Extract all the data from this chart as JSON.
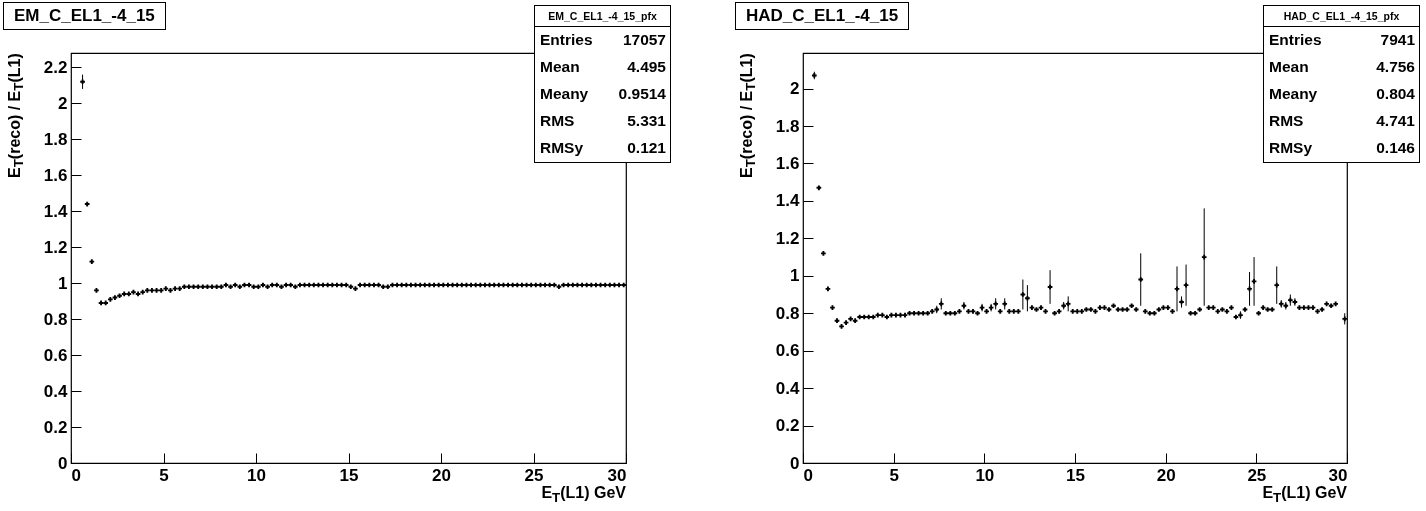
{
  "chart_data": [
    {
      "type": "scatter",
      "title": "EM_C_EL1_-4_15",
      "xlabel": "E$_{T}$(L1) GeV",
      "ylabel": "E$_{T}$(reco) / E$_{T}$(L1)",
      "marker": "cross",
      "color": "#000000",
      "annotations": [
        "EM_C_EL1_-4_15_pfx",
        "Entries 17057",
        "Mean 4.495",
        "Meany 0.9514",
        "RMS 5.331",
        "RMSy 0.121"
      ],
      "xlim": [
        0,
        30
      ],
      "ylim": [
        0,
        2.28
      ],
      "xticks": [
        0,
        5,
        10,
        15,
        20,
        25,
        30
      ],
      "yticks": [
        0,
        0.2,
        0.4,
        0.6,
        0.8,
        1,
        1.2,
        1.4,
        1.6,
        1.8,
        2,
        2.2
      ],
      "x": [
        0.625,
        0.875,
        1.125,
        1.375,
        1.625,
        1.875,
        2.125,
        2.375,
        2.625,
        2.875,
        3.125,
        3.375,
        3.625,
        3.875,
        4.125,
        4.375,
        4.625,
        4.875,
        5.125,
        5.375,
        5.625,
        5.875,
        6.125,
        6.375,
        6.625,
        6.875,
        7.125,
        7.375,
        7.625,
        7.875,
        8.125,
        8.375,
        8.625,
        8.875,
        9.125,
        9.375,
        9.625,
        9.875,
        10.125,
        10.375,
        10.625,
        10.875,
        11.125,
        11.375,
        11.625,
        11.875,
        12.125,
        12.375,
        12.625,
        12.875,
        13.125,
        13.375,
        13.625,
        13.875,
        14.125,
        14.375,
        14.625,
        14.875,
        15.125,
        15.375,
        15.625,
        15.875,
        16.125,
        16.375,
        16.625,
        16.875,
        17.125,
        17.375,
        17.625,
        17.875,
        18.125,
        18.375,
        18.625,
        18.875,
        19.125,
        19.375,
        19.625,
        19.875,
        20.125,
        20.375,
        20.625,
        20.875,
        21.125,
        21.375,
        21.625,
        21.875,
        22.125,
        22.375,
        22.625,
        22.875,
        23.125,
        23.375,
        23.625,
        23.875,
        24.125,
        24.375,
        24.625,
        24.875,
        25.125,
        25.375,
        25.625,
        25.875,
        26.125,
        26.375,
        26.625,
        26.875,
        27.125,
        27.375,
        27.625,
        27.875,
        28.125,
        28.375,
        28.625,
        28.875,
        29.125,
        29.375,
        29.625,
        29.875
      ],
      "values": [
        2.12,
        1.44,
        1.12,
        0.96,
        0.89,
        0.89,
        0.91,
        0.92,
        0.93,
        0.94,
        0.94,
        0.95,
        0.94,
        0.95,
        0.96,
        0.96,
        0.96,
        0.96,
        0.97,
        0.96,
        0.97,
        0.97,
        0.98,
        0.98,
        0.98,
        0.98,
        0.98,
        0.98,
        0.98,
        0.98,
        0.98,
        0.99,
        0.98,
        0.99,
        0.98,
        0.99,
        0.99,
        0.98,
        0.98,
        0.99,
        0.98,
        0.99,
        0.99,
        0.98,
        0.99,
        0.99,
        0.98,
        0.99,
        0.99,
        0.99,
        0.99,
        0.99,
        0.99,
        0.99,
        0.99,
        0.99,
        0.99,
        0.99,
        0.98,
        0.97,
        0.99,
        0.99,
        0.99,
        0.99,
        0.99,
        0.98,
        0.98,
        0.99,
        0.99,
        0.99,
        0.99,
        0.99,
        0.99,
        0.99,
        0.99,
        0.99,
        0.99,
        0.99,
        0.99,
        0.99,
        0.99,
        0.99,
        0.99,
        0.99,
        0.99,
        0.99,
        0.99,
        0.99,
        0.99,
        0.99,
        0.99,
        0.99,
        0.99,
        0.99,
        0.99,
        0.99,
        0.99,
        0.99,
        0.99,
        0.99,
        0.99,
        0.99,
        0.99,
        0.98,
        0.99,
        0.99,
        0.99,
        0.99,
        0.99,
        0.99,
        0.99,
        0.99,
        0.99,
        0.99,
        0.99,
        0.99,
        0.99,
        0.99
      ],
      "errors": [
        0.04,
        0.01,
        null,
        null,
        null,
        null,
        null,
        null,
        null,
        null,
        null,
        null,
        null,
        null,
        null,
        null,
        null,
        null,
        null,
        null,
        null,
        null,
        null,
        null,
        null,
        null,
        null,
        null,
        null,
        null,
        null,
        null,
        null,
        null,
        null,
        null,
        null,
        null,
        null,
        null,
        null,
        null,
        null,
        null,
        null,
        null,
        null,
        null,
        null,
        null,
        null,
        null,
        null,
        null,
        null,
        null,
        null,
        null,
        null,
        null,
        null,
        null,
        null,
        null,
        null,
        null,
        null,
        null,
        null,
        null,
        null,
        null,
        null,
        null,
        null,
        null,
        null,
        null,
        null,
        null,
        null,
        null,
        null,
        null,
        null,
        null,
        null,
        null,
        null,
        null,
        null,
        null,
        null,
        null,
        null,
        null,
        null,
        null,
        null,
        null,
        null,
        null,
        null,
        null,
        null,
        null,
        null,
        null,
        null,
        null,
        null,
        null,
        null,
        null,
        null,
        null,
        null,
        null
      ]
    },
    {
      "type": "scatter",
      "title": "HAD_C_EL1_-4_15",
      "xlabel": "E$_{T}$(L1) GeV",
      "ylabel": "E$_{T}$(reco) / E$_{T}$(L1)",
      "marker": "cross",
      "color": "#000000",
      "annotations": [
        "HAD_C_EL1_-4_15_pfx",
        "Entries 7941",
        "Mean 4.756",
        "Meany 0.804",
        "RMS 4.741",
        "RMSy 0.146"
      ],
      "xlim": [
        0,
        30
      ],
      "ylim": [
        0,
        2.19
      ],
      "xticks": [
        0,
        5,
        10,
        15,
        20,
        25,
        30
      ],
      "yticks": [
        0,
        0.2,
        0.4,
        0.6,
        0.8,
        1,
        1.2,
        1.4,
        1.6,
        1.8,
        2
      ],
      "x": [
        0.625,
        0.875,
        1.125,
        1.375,
        1.625,
        1.875,
        2.125,
        2.375,
        2.625,
        2.875,
        3.125,
        3.375,
        3.625,
        3.875,
        4.125,
        4.375,
        4.625,
        4.875,
        5.125,
        5.375,
        5.625,
        5.875,
        6.125,
        6.375,
        6.625,
        6.875,
        7.125,
        7.375,
        7.625,
        7.875,
        8.125,
        8.375,
        8.625,
        8.875,
        9.125,
        9.375,
        9.625,
        9.875,
        10.125,
        10.375,
        10.625,
        10.875,
        11.125,
        11.375,
        11.625,
        11.875,
        12.125,
        12.375,
        12.625,
        12.875,
        13.125,
        13.375,
        13.625,
        13.875,
        14.125,
        14.375,
        14.625,
        14.875,
        15.125,
        15.375,
        15.625,
        15.875,
        16.125,
        16.375,
        16.625,
        16.875,
        17.125,
        17.375,
        17.625,
        17.875,
        18.125,
        18.375,
        18.625,
        18.875,
        19.125,
        19.375,
        19.625,
        19.875,
        20.125,
        20.375,
        20.625,
        20.875,
        21.125,
        21.375,
        21.625,
        21.875,
        22.125,
        22.375,
        22.625,
        22.875,
        23.125,
        23.375,
        23.625,
        23.875,
        24.125,
        24.375,
        24.625,
        24.875,
        25.125,
        25.375,
        25.625,
        25.875,
        26.125,
        26.375,
        26.625,
        26.875,
        27.125,
        27.375,
        27.625,
        27.875,
        28.125,
        28.375,
        28.625,
        28.875,
        29.125,
        29.375,
        29.625,
        29.875
      ],
      "values": [
        2.07,
        1.47,
        1.12,
        0.93,
        0.83,
        0.76,
        0.73,
        0.75,
        0.77,
        0.76,
        0.78,
        0.78,
        0.78,
        0.78,
        0.79,
        0.79,
        0.78,
        0.79,
        0.79,
        0.79,
        0.79,
        0.8,
        0.8,
        0.8,
        0.8,
        0.8,
        0.81,
        0.82,
        0.85,
        0.8,
        0.8,
        0.8,
        0.81,
        0.84,
        0.81,
        0.81,
        0.8,
        0.83,
        0.81,
        0.83,
        0.85,
        0.81,
        0.85,
        0.81,
        0.81,
        0.81,
        0.9,
        0.88,
        0.83,
        0.82,
        0.83,
        0.81,
        0.94,
        0.8,
        0.81,
        0.84,
        0.85,
        0.81,
        0.81,
        0.81,
        0.82,
        0.82,
        0.81,
        0.83,
        0.83,
        0.82,
        0.84,
        0.82,
        0.82,
        0.82,
        0.84,
        0.82,
        0.98,
        0.81,
        0.8,
        0.8,
        0.82,
        0.83,
        0.83,
        0.81,
        0.93,
        0.86,
        0.95,
        0.8,
        0.8,
        0.82,
        1.1,
        0.83,
        0.83,
        0.81,
        0.82,
        0.81,
        0.83,
        0.78,
        0.79,
        0.82,
        0.93,
        0.97,
        0.8,
        0.83,
        0.82,
        0.82,
        0.95,
        0.85,
        0.84,
        0.87,
        0.86,
        0.83,
        0.83,
        0.83,
        0.83,
        0.81,
        0.82,
        0.85,
        0.84,
        0.85,
        null,
        0.77
      ],
      "errors": [
        0.02,
        0.01,
        null,
        null,
        null,
        null,
        null,
        null,
        null,
        null,
        null,
        null,
        null,
        null,
        null,
        null,
        null,
        null,
        null,
        null,
        null,
        null,
        null,
        null,
        null,
        null,
        null,
        0.02,
        0.03,
        null,
        null,
        null,
        null,
        0.02,
        null,
        null,
        null,
        0.02,
        null,
        0.02,
        0.03,
        null,
        0.03,
        null,
        null,
        null,
        0.08,
        0.07,
        null,
        null,
        null,
        null,
        0.09,
        null,
        null,
        0.02,
        0.04,
        null,
        null,
        null,
        null,
        null,
        null,
        null,
        null,
        null,
        null,
        null,
        null,
        null,
        null,
        null,
        0.14,
        null,
        null,
        null,
        null,
        null,
        null,
        null,
        0.12,
        0.03,
        0.11,
        null,
        null,
        null,
        0.26,
        null,
        null,
        null,
        null,
        null,
        null,
        null,
        0.02,
        null,
        0.09,
        0.13,
        null,
        null,
        null,
        null,
        0.1,
        0.02,
        0.02,
        0.03,
        0.02,
        null,
        null,
        null,
        null,
        null,
        null,
        null,
        null,
        null,
        null,
        0.03
      ]
    }
  ]
}
